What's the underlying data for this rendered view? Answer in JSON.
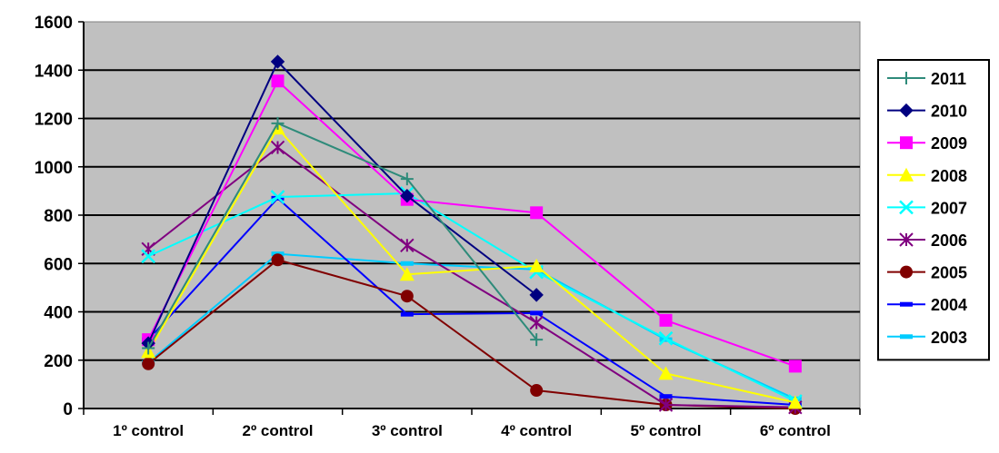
{
  "chart_data": {
    "type": "line",
    "title": "",
    "xlabel": "",
    "ylabel": "",
    "categories": [
      "1º control",
      "2º control",
      "3º control",
      "4º control",
      "5º control",
      "6º control"
    ],
    "ylim": [
      0,
      1600
    ],
    "yticks": [
      0,
      200,
      400,
      600,
      800,
      1000,
      1200,
      1400,
      1600
    ],
    "grid": true,
    "legend_position": "right",
    "plot_background": "#C0C0C0",
    "series": [
      {
        "name": "2011",
        "color": "#2E8B7A",
        "marker": "plus",
        "values": [
          250,
          1180,
          950,
          285,
          null,
          null
        ]
      },
      {
        "name": "2010",
        "color": "#000080",
        "marker": "diamond",
        "values": [
          270,
          1435,
          880,
          470,
          null,
          null
        ]
      },
      {
        "name": "2009",
        "color": "#FF00FF",
        "marker": "square",
        "values": [
          285,
          1355,
          865,
          810,
          365,
          175
        ]
      },
      {
        "name": "2008",
        "color": "#FFFF00",
        "marker": "triangle",
        "values": [
          235,
          1160,
          555,
          590,
          145,
          25
        ]
      },
      {
        "name": "2007",
        "color": "#00FFFF",
        "marker": "x",
        "values": [
          630,
          875,
          890,
          565,
          290,
          30
        ]
      },
      {
        "name": "2006",
        "color": "#800080",
        "marker": "asterisk",
        "values": [
          660,
          1080,
          675,
          355,
          15,
          5
        ]
      },
      {
        "name": "2005",
        "color": "#800000",
        "marker": "circle",
        "values": [
          185,
          615,
          465,
          75,
          15,
          0
        ]
      },
      {
        "name": "2004",
        "color": "#0000FF",
        "marker": "dash",
        "values": [
          285,
          870,
          390,
          395,
          50,
          15
        ]
      },
      {
        "name": "2003",
        "color": "#00CCFF",
        "marker": "dash",
        "values": [
          190,
          640,
          600,
          575,
          285,
          40
        ]
      }
    ]
  }
}
